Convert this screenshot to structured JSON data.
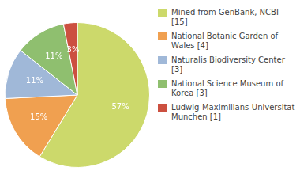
{
  "chart_data": {
    "type": "pie",
    "categories": [
      "Mined from GenBank, NCBI [15]",
      "National Botanic Garden of\nWales [4]",
      "Naturalis Biodiversity Center [3]",
      "National Science Museum of\nKorea [3]",
      "Ludwig-Maximilians-Universitat\nMunchen [1]"
    ],
    "values": [
      57,
      15,
      11,
      11,
      3
    ],
    "value_labels": [
      "57%",
      "15%",
      "11%",
      "11%",
      "3%"
    ],
    "colors": [
      "#ccd96b",
      "#f0a050",
      "#a0b8d8",
      "#8fbf6f",
      "#cc5040"
    ],
    "data_labels": true,
    "legend": "right"
  }
}
